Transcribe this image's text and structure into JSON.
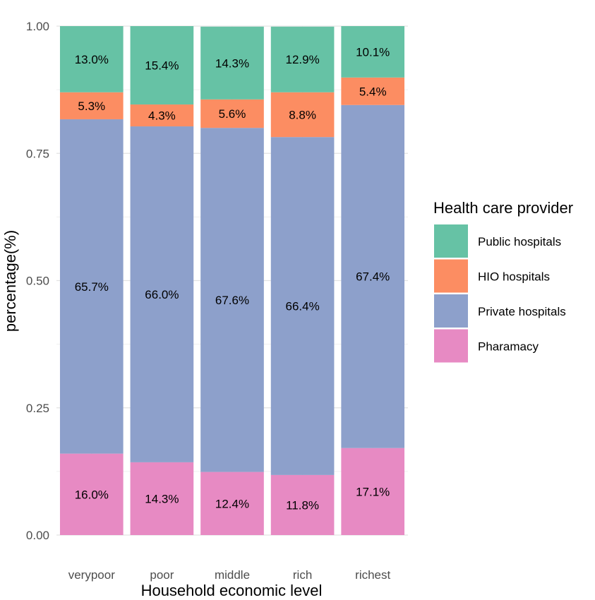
{
  "chart_data": {
    "type": "bar",
    "stacked": true,
    "categories": [
      "verypoor",
      "poor",
      "middle",
      "rich",
      "richest"
    ],
    "series": [
      {
        "name": "Pharamacy",
        "color": "#E78AC3",
        "values": [
          0.16,
          0.143,
          0.124,
          0.118,
          0.171
        ],
        "labels": [
          "16.0%",
          "14.3%",
          "12.4%",
          "11.8%",
          "17.1%"
        ]
      },
      {
        "name": "Private hospitals",
        "color": "#8DA0CB",
        "values": [
          0.657,
          0.66,
          0.676,
          0.664,
          0.674
        ],
        "labels": [
          "65.7%",
          "66.0%",
          "67.6%",
          "66.4%",
          "67.4%"
        ]
      },
      {
        "name": "HIO hospitals",
        "color": "#FC8D62",
        "values": [
          0.053,
          0.043,
          0.056,
          0.088,
          0.054
        ],
        "labels": [
          "5.3%",
          "4.3%",
          "5.6%",
          "8.8%",
          "5.4%"
        ]
      },
      {
        "name": "Public hospitals",
        "color": "#66C2A5",
        "values": [
          0.13,
          0.154,
          0.143,
          0.129,
          0.101
        ],
        "labels": [
          "13.0%",
          "15.4%",
          "14.3%",
          "12.9%",
          "10.1%"
        ]
      }
    ],
    "xlabel": "Household economic level",
    "ylabel": "percentage(%)",
    "ylim": [
      0,
      1
    ],
    "yticks": [
      0,
      0.25,
      0.5,
      0.75,
      1
    ],
    "ytick_labels": [
      "0.00",
      "0.25",
      "0.50",
      "0.75",
      "1.00"
    ],
    "grid": true,
    "legend": {
      "title": "Health care provider",
      "placement": "right",
      "order": [
        "Public hospitals",
        "HIO hospitals",
        "Private hospitals",
        "Pharamacy"
      ]
    }
  }
}
